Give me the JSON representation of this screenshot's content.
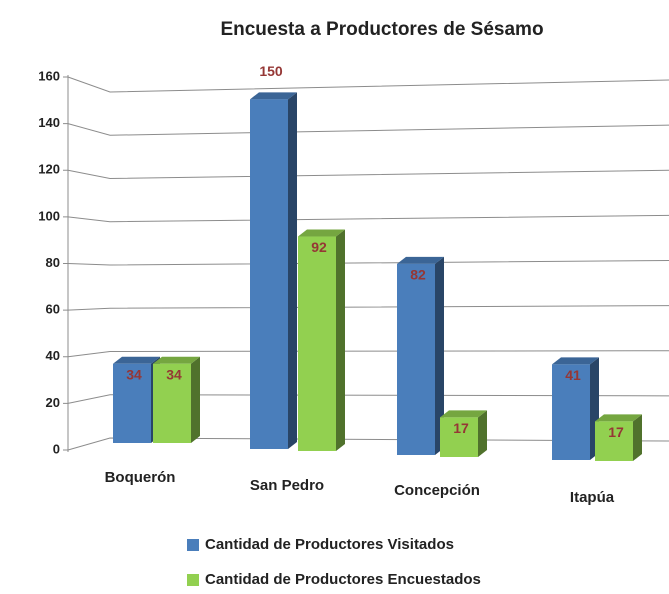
{
  "chart_data": {
    "type": "bar3d",
    "title": "Encuesta a Productores de Sésamo",
    "categories": [
      "Boquerón",
      "San Pedro",
      "Concepción",
      "Itapúa"
    ],
    "series": [
      {
        "name": "Cantidad de Productores Visitados",
        "color": "#4a7ebb",
        "values": [
          34,
          150,
          82,
          41
        ]
      },
      {
        "name": "Cantidad de Productores Encuestados",
        "color": "#92d050",
        "values": [
          34,
          92,
          17,
          17
        ]
      }
    ],
    "ylim": [
      0,
      160
    ],
    "yticks": [
      0,
      20,
      40,
      60,
      80,
      100,
      120,
      140,
      160
    ],
    "grid": true,
    "value_label_color": "#953735"
  }
}
